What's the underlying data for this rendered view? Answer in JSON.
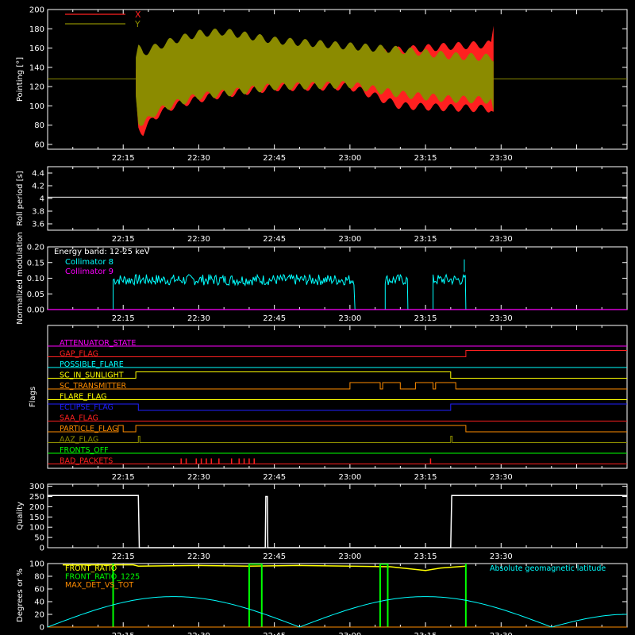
{
  "x_tick_labels": [
    "22:15",
    "22:30",
    "22:45",
    "23:00",
    "23:15",
    "23:30"
  ],
  "chart_data": [
    {
      "type": "area",
      "ylabel": "Pointing [°]",
      "y_ticks": [
        60,
        80,
        100,
        120,
        140,
        160,
        180,
        200
      ],
      "ylim": [
        55,
        200
      ],
      "xlim_minutes": [
        0,
        115
      ],
      "legend": {
        "position": "top-left",
        "entries": [
          "X",
          "Y"
        ]
      },
      "center_line": 128,
      "series": [
        {
          "name": "X",
          "color": "#ff2020",
          "kind": "band",
          "points": [
            {
              "t": 17.5,
              "lo": 110,
              "hi": 140
            },
            {
              "t": 18,
              "lo": 78,
              "hi": 158
            },
            {
              "t": 19,
              "lo": 72,
              "hi": 150
            },
            {
              "t": 21,
              "lo": 88,
              "hi": 157
            },
            {
              "t": 25,
              "lo": 100,
              "hi": 162
            },
            {
              "t": 30,
              "lo": 107,
              "hi": 168
            },
            {
              "t": 35,
              "lo": 112,
              "hi": 172
            },
            {
              "t": 45,
              "lo": 119,
              "hi": 158
            },
            {
              "t": 60,
              "lo": 120,
              "hi": 152
            },
            {
              "t": 70,
              "lo": 100,
              "hi": 158
            },
            {
              "t": 80,
              "lo": 98,
              "hi": 162
            },
            {
              "t": 88,
              "lo": 97,
              "hi": 164
            },
            {
              "t": 88.5,
              "lo": 92,
              "hi": 185
            }
          ]
        },
        {
          "name": "Y",
          "color": "#8b8b00",
          "kind": "band",
          "points": [
            {
              "t": 17.5,
              "lo": 110,
              "hi": 150
            },
            {
              "t": 18,
              "lo": 85,
              "hi": 160
            },
            {
              "t": 19,
              "lo": 80,
              "hi": 155
            },
            {
              "t": 21,
              "lo": 92,
              "hi": 160
            },
            {
              "t": 25,
              "lo": 102,
              "hi": 168
            },
            {
              "t": 30,
              "lo": 110,
              "hi": 175
            },
            {
              "t": 35,
              "lo": 113,
              "hi": 177
            },
            {
              "t": 45,
              "lo": 120,
              "hi": 168
            },
            {
              "t": 60,
              "lo": 122,
              "hi": 162
            },
            {
              "t": 70,
              "lo": 112,
              "hi": 158
            },
            {
              "t": 80,
              "lo": 107,
              "hi": 152
            },
            {
              "t": 88,
              "lo": 106,
              "hi": 150
            },
            {
              "t": 88.5,
              "lo": 90,
              "hi": 150
            }
          ]
        }
      ]
    },
    {
      "type": "line",
      "ylabel": "Roll period [s]",
      "y_ticks": [
        3.6,
        3.8,
        4.0,
        4.2,
        4.4
      ],
      "ylim": [
        3.5,
        4.5
      ],
      "series": [
        {
          "color": "#ffffff",
          "x": [
            0,
            115
          ],
          "y": [
            4.02,
            4.02
          ]
        }
      ]
    },
    {
      "type": "line",
      "ylabel": "Normalized modulation",
      "y_ticks": [
        "0.00",
        "0.05",
        "0.10",
        "0.15",
        "0.20"
      ],
      "ylim": [
        0,
        0.2
      ],
      "annotations": [
        "Energy band: 12-25 keV"
      ],
      "legend": {
        "position": "top-left",
        "entries": [
          "Collimator 8",
          "Collimator 9"
        ]
      },
      "series": [
        {
          "name": "Collimator 8",
          "color": "#00ffff",
          "active_intervals": [
            [
              13,
              61
            ],
            [
              67,
              71.5
            ],
            [
              76.5,
              83
            ]
          ],
          "level": 0.095,
          "peak": 0.16
        },
        {
          "name": "Collimator 9",
          "color": "#ff00ff",
          "x": [
            0,
            115
          ],
          "y": [
            0,
            0
          ]
        }
      ]
    },
    {
      "type": "line",
      "ylabel": "Flags",
      "flags": [
        {
          "name": "ATTENUATOR_STATE",
          "color": "#ff00ff",
          "steps": [
            [
              0,
              0
            ]
          ]
        },
        {
          "name": "GAP_FLAG",
          "color": "#ff2020",
          "steps": [
            [
              0,
              0
            ],
            [
              83,
              1
            ]
          ]
        },
        {
          "name": "POSSIBLE_FLARE",
          "color": "#00ffff",
          "steps": [
            [
              0,
              0
            ]
          ]
        },
        {
          "name": "SC_IN_SUNLIGHT",
          "color": "#ffff00",
          "steps": [
            [
              0,
              0
            ],
            [
              17.5,
              1
            ],
            [
              80,
              0
            ]
          ]
        },
        {
          "name": "SC_TRANSMITTER",
          "color": "#ff8c00",
          "steps": [
            [
              0,
              0
            ],
            [
              60,
              1
            ],
            [
              66,
              0
            ],
            [
              66.5,
              1
            ],
            [
              70,
              0
            ],
            [
              73,
              1
            ],
            [
              76.5,
              0
            ],
            [
              77,
              1
            ],
            [
              81,
              0
            ]
          ]
        },
        {
          "name": "FLARE_FLAG",
          "color": "#ffff00",
          "steps": [
            [
              0,
              0
            ]
          ]
        },
        {
          "name": "ECLIPSE_FLAG",
          "color": "#2020ff",
          "steps": [
            [
              0,
              1
            ],
            [
              18,
              0
            ],
            [
              80,
              1
            ]
          ]
        },
        {
          "name": "SAA_FLAG",
          "color": "#ff2020",
          "steps": [
            [
              0,
              0
            ]
          ]
        },
        {
          "name": "PARTICLE_FLAG",
          "color": "#ff8c00",
          "steps": [
            [
              0,
              0
            ],
            [
              14,
              1
            ],
            [
              15,
              0
            ],
            [
              17.5,
              1
            ],
            [
              83,
              0
            ]
          ]
        },
        {
          "name": "AAZ_FLAG",
          "color": "#8b8b00",
          "steps": [
            [
              0,
              0
            ],
            [
              18,
              1
            ],
            [
              18.3,
              0
            ],
            [
              80,
              1
            ],
            [
              80.3,
              0
            ]
          ]
        },
        {
          "name": "FRONTS_OFF",
          "color": "#00ff00",
          "steps": [
            [
              0,
              0
            ]
          ]
        },
        {
          "name": "BAD_PACKETS",
          "color": "#ff2020",
          "spikes": [
            26.5,
            27.5,
            29.5,
            30.5,
            31.5,
            32.5,
            34,
            36.5,
            38,
            39,
            40,
            41,
            76
          ]
        }
      ]
    },
    {
      "type": "line",
      "ylabel": "Quality",
      "y_ticks": [
        0,
        50,
        100,
        150,
        200,
        250,
        300
      ],
      "ylim": [
        0,
        310
      ],
      "series": [
        {
          "color": "#ffffff",
          "x": [
            0,
            18,
            18.2,
            43.2,
            43.3,
            43.6,
            43.7,
            80,
            80.2,
            115
          ],
          "y": [
            255,
            255,
            0,
            0,
            250,
            250,
            0,
            0,
            255,
            255
          ]
        }
      ]
    },
    {
      "type": "line",
      "ylabel": "Degrees or %",
      "y_ticks": [
        0,
        20,
        40,
        60,
        80,
        100
      ],
      "ylim": [
        0,
        100
      ],
      "legend": {
        "position": "top-left",
        "entries": [
          "FRONT_RATIO",
          "FRONT_RATIO_1225",
          "MAX_DET_VS_TOT"
        ]
      },
      "annotations": [
        "Absolute geomagnetic latitude"
      ],
      "series": [
        {
          "name": "FRONT_RATIO",
          "color": "#ffff00",
          "x": [
            3,
            17,
            18,
            30,
            40,
            50,
            60,
            68,
            75,
            78,
            83
          ],
          "y": [
            98,
            98,
            96,
            97,
            96,
            97,
            96,
            95,
            89,
            93,
            96
          ]
        },
        {
          "name": "FRONT_RATIO_1225",
          "color": "#00ff00",
          "spikes": [
            13,
            40,
            42.5,
            66,
            67.5,
            83
          ]
        },
        {
          "name": "MAX_DET_VS_TOT",
          "color": "#ff8c00",
          "x": [
            0,
            115
          ],
          "y": [
            0,
            0
          ]
        },
        {
          "name": "Absolute geomagnetic latitude",
          "color": "#00ffff",
          "x": [
            0,
            25,
            50,
            75,
            100,
            115
          ],
          "y": [
            0,
            48,
            0,
            48,
            0,
            20
          ]
        }
      ]
    }
  ]
}
